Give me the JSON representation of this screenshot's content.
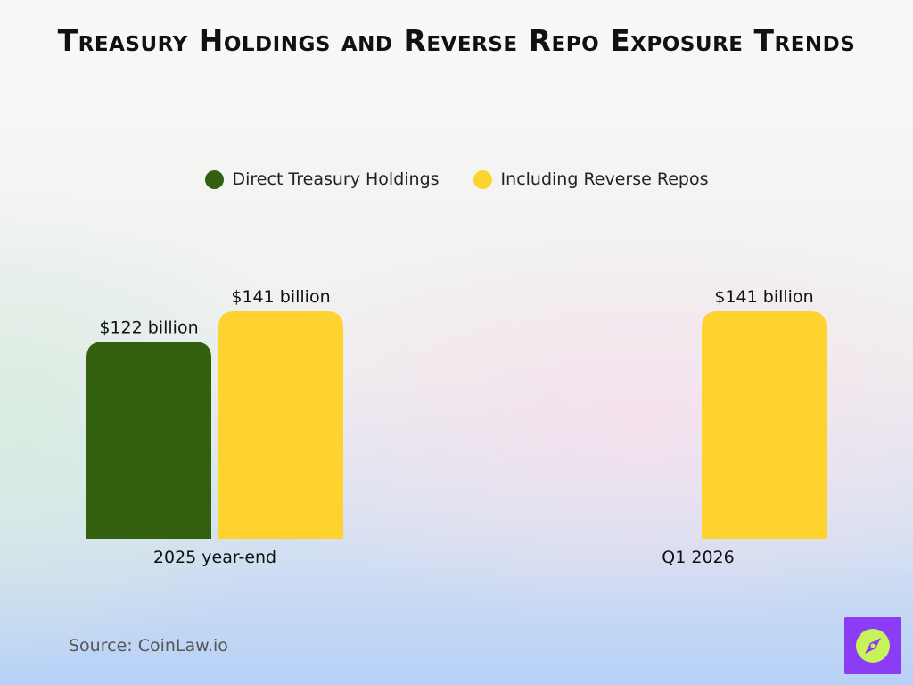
{
  "chart_data": {
    "type": "bar",
    "title": "Treasury Holdings and Reverse Repo Exposure Trends",
    "xlabel": "",
    "ylabel": "",
    "categories": [
      "2025 year-end",
      "Q1 2026"
    ],
    "series": [
      {
        "name": "Direct Treasury Holdings",
        "color": "#33600f",
        "values": [
          122,
          null
        ],
        "labels": [
          "$122 billion",
          ""
        ]
      },
      {
        "name": "Including Reverse Repos",
        "color": "#ffd32f",
        "values": [
          141,
          141
        ],
        "labels": [
          "$141 billion",
          "$141 billion"
        ]
      }
    ],
    "unit": "billion USD",
    "ylim": [
      0,
      141
    ],
    "grid": false,
    "legend_position": "top-center"
  },
  "footer": {
    "source": "Source: CoinLaw.io"
  },
  "logo": {
    "icon": "compass-icon",
    "color": "#8b3df5",
    "accent": "#c8f25a"
  }
}
